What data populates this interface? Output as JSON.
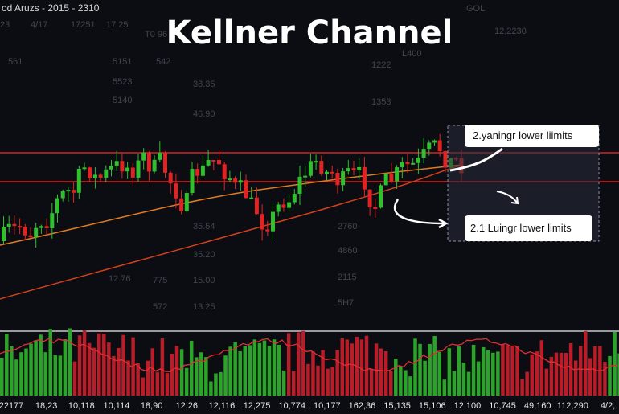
{
  "header": {
    "caption": "od Aruzs - 2015 - 2310",
    "title": "Kellner Channel"
  },
  "callouts": [
    "2.yaningr lower liimits",
    "2.1 Luingr lower limits"
  ],
  "background_labels": [
    "23",
    "4/17",
    "17251",
    "17.25",
    "T0 96",
    "561",
    "5151",
    "542",
    "5523",
    "5140",
    "38.35",
    "46.90",
    "35.54",
    "35.20",
    "15.00",
    "13.25",
    "572",
    "775",
    "12.76",
    "2760",
    "4860",
    "2115",
    "5H7",
    "12,2230",
    "1222",
    "1353",
    "L400",
    "GOL"
  ],
  "x_labels": [
    "22177",
    "18,23",
    "10,118",
    "10,114",
    "18,90",
    "12,26",
    "12,116",
    "12,275",
    "10,774",
    "10,177",
    "162,36",
    "15,135",
    "15,106",
    "12,100",
    "10,745",
    "49,160",
    "112,290",
    "4/2,"
  ]
}
